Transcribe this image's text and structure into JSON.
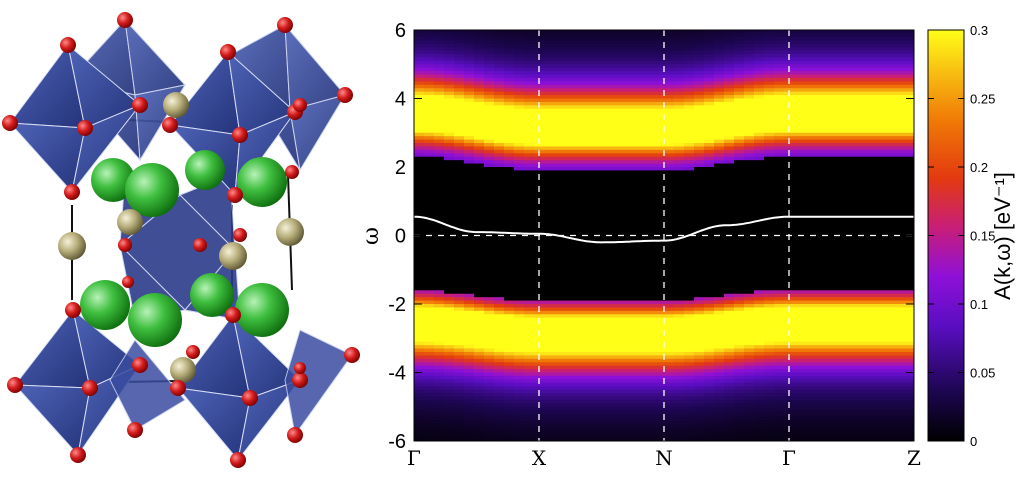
{
  "chart_data": {
    "type": "heatmap",
    "title": "",
    "ylabel": "ω",
    "colorbar_label": "A(k,ω) [eV⁻¹]",
    "ylim": [
      -6,
      6
    ],
    "y_ticks": [
      "6",
      "4",
      "2",
      "0",
      "-2",
      "-4",
      "-6"
    ],
    "k_path": [
      "Γ",
      "X",
      "N",
      "Γ",
      "Z"
    ],
    "colorbar_range": [
      0,
      0.3
    ],
    "colorbar_ticks": [
      "0",
      "0.05",
      "0.1",
      "0.15",
      "0.2",
      "0.25",
      "0.3"
    ],
    "colormap": "gnuplot-pm3d",
    "bands": [
      {
        "name": "upper",
        "k": [
          0,
          1,
          2,
          3,
          4
        ],
        "center": [
          3.5,
          3.1,
          3.1,
          3.5,
          3.5
        ]
      },
      {
        "name": "lower",
        "k": [
          0,
          1,
          2,
          3,
          4
        ],
        "center": [
          -2.5,
          -2.8,
          -2.8,
          -2.5,
          -2.5
        ]
      }
    ],
    "quasiparticle_line": {
      "k": [
        0,
        0.5,
        1,
        1.5,
        2,
        2.5,
        3,
        4
      ],
      "omega": [
        0.55,
        0.1,
        0.05,
        -0.2,
        -0.15,
        0.3,
        0.55,
        0.55
      ]
    },
    "grid": "dashed-white"
  },
  "structure_panel": {
    "description_icon": "crystal-structure-icon",
    "colors": {
      "octahedron": "#2f3f8f",
      "oxygen": "#d01818",
      "a_site": "#2aa82a",
      "b_site": "#b8ae7a"
    }
  }
}
